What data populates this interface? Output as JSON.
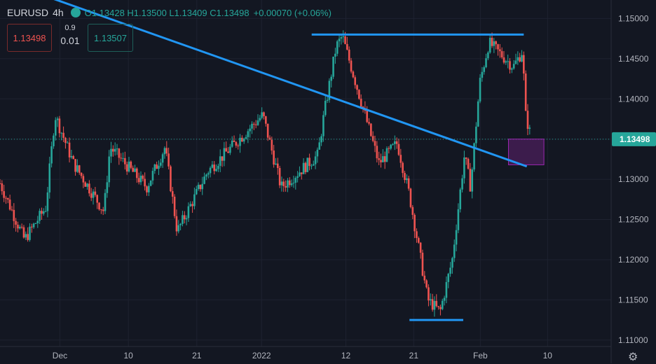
{
  "header": {
    "symbol": "EURUSD",
    "interval": "4h",
    "ohlc": "O1.13428 H1.13500 L1.13409 C1.13498",
    "change": "+0.00070 (+0.06%)"
  },
  "order_panel": {
    "sell_price": "1.13498",
    "spread_top": "0.9",
    "spread_bottom": "0.01",
    "buy_price": "1.13507"
  },
  "colors": {
    "background": "#131722",
    "up": "#26a69a",
    "down": "#ef5350",
    "trendline": "#2196f3",
    "zone": "#9c27b0",
    "price_badge": "#26a69a"
  },
  "chart_data": {
    "type": "candlestick",
    "symbol": "EURUSD",
    "interval": "4h",
    "y_axis": {
      "ticks": [
        "1.15000",
        "1.14500",
        "1.14000",
        "1.13500",
        "1.13000",
        "1.12500",
        "1.12000",
        "1.11500",
        "1.11000"
      ],
      "ylim": [
        1.1092,
        1.1523
      ]
    },
    "x_axis": {
      "ticks": [
        "Dec",
        "10",
        "21",
        "2022",
        "12",
        "21",
        "Feb",
        "10"
      ]
    },
    "last_price": "1.13498",
    "price_path_close_points": [
      [
        0,
        1.1295
      ],
      [
        0.04,
        1.1225
      ],
      [
        0.075,
        1.1265
      ],
      [
        0.09,
        1.138
      ],
      [
        0.12,
        1.132
      ],
      [
        0.17,
        1.126
      ],
      [
        0.18,
        1.134
      ],
      [
        0.24,
        1.129
      ],
      [
        0.27,
        1.134
      ],
      [
        0.29,
        1.1235
      ],
      [
        0.34,
        1.131
      ],
      [
        0.43,
        1.138
      ],
      [
        0.46,
        1.129
      ],
      [
        0.52,
        1.133
      ],
      [
        0.53,
        1.138
      ],
      [
        0.55,
        1.1465
      ],
      [
        0.56,
        1.1478
      ],
      [
        0.62,
        1.132
      ],
      [
        0.65,
        1.1345
      ],
      [
        0.67,
        1.128
      ],
      [
        0.7,
        1.115
      ],
      [
        0.72,
        1.1135
      ],
      [
        0.74,
        1.12
      ],
      [
        0.76,
        1.133
      ],
      [
        0.77,
        1.129
      ],
      [
        0.785,
        1.142
      ],
      [
        0.8,
        1.147
      ],
      [
        0.84,
        1.144
      ],
      [
        0.855,
        1.146
      ],
      [
        0.86,
        1.138
      ],
      [
        0.87,
        1.1349
      ]
    ],
    "annotations": {
      "descending_trendline": [
        [
          0,
          1.1548
        ],
        [
          0.862,
          1.1316
        ]
      ],
      "resistance_line": {
        "price": 1.148,
        "from": 0.51,
        "to": 0.857
      },
      "support_line": {
        "price": 1.1125,
        "from": 0.67,
        "to": 0.758
      },
      "highlight_zone": {
        "from": 0.832,
        "to": 0.89,
        "top": 1.135,
        "bottom": 1.1318
      }
    }
  }
}
